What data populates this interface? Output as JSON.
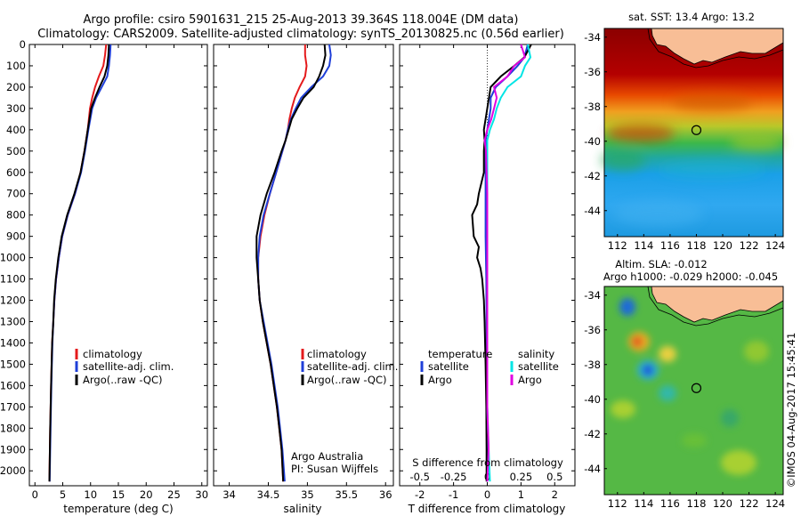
{
  "header": {
    "title_line1": "Argo profile: csiro 5901631_215 25-Aug-2013 39.364S 118.004E (DM data)",
    "title_line2": "Climatology: CARS2009. Satellite-adjusted climatology: synTS_20130825.nc (0.56d earlier)"
  },
  "colors": {
    "climatology": "#e41a1c",
    "satellite": "#1f3fd8",
    "argo": "#000000",
    "sal_satellite": "#00e5e5",
    "sal_argo": "#e100e1"
  },
  "chart_data": [
    {
      "type": "line",
      "name": "temperature-profile",
      "xlabel": "temperature (deg C)",
      "ylabel": "",
      "xlim": [
        -1,
        31
      ],
      "ylim": [
        2070,
        0
      ],
      "xticks": [
        0,
        5,
        10,
        15,
        20,
        25,
        30
      ],
      "yticks": [
        0,
        100,
        200,
        300,
        400,
        500,
        600,
        700,
        800,
        900,
        1000,
        1100,
        1200,
        1300,
        1400,
        1500,
        1600,
        1700,
        1800,
        1900,
        2000
      ],
      "legend": [
        "climatology",
        "satellite-adj. clim.",
        "Argo(..raw -QC)"
      ],
      "series": [
        {
          "name": "climatology",
          "depth": [
            0,
            50,
            100,
            150,
            200,
            250,
            300,
            400,
            500,
            600,
            700,
            800,
            900,
            1000,
            1100,
            1200,
            1300,
            1400,
            1600,
            1800,
            2050
          ],
          "values": [
            12.8,
            12.6,
            12.3,
            11.5,
            10.8,
            10.3,
            9.9,
            9.5,
            8.9,
            8.2,
            7.2,
            5.9,
            4.9,
            4.3,
            3.8,
            3.5,
            3.3,
            3.1,
            2.9,
            2.75,
            2.6
          ]
        },
        {
          "name": "satellite-adj. clim.",
          "depth": [
            0,
            50,
            100,
            150,
            200,
            250,
            300,
            400,
            500,
            600,
            700,
            800,
            900,
            1000,
            1100,
            1200,
            1300,
            1400,
            1600,
            1800,
            2050
          ],
          "values": [
            13.6,
            13.5,
            13.3,
            13.0,
            12.0,
            11.0,
            10.3,
            9.6,
            9.0,
            8.3,
            7.2,
            5.9,
            4.9,
            4.3,
            3.8,
            3.5,
            3.3,
            3.15,
            2.95,
            2.8,
            2.65
          ]
        },
        {
          "name": "Argo(..raw -QC)",
          "depth": [
            0,
            50,
            100,
            150,
            200,
            250,
            300,
            400,
            500,
            600,
            700,
            800,
            900,
            1000,
            1100,
            1200,
            1300,
            1400,
            1600,
            1800,
            2050
          ],
          "values": [
            13.3,
            13.2,
            13.0,
            12.5,
            11.6,
            10.8,
            10.1,
            9.5,
            8.9,
            8.2,
            7.1,
            5.8,
            4.8,
            4.2,
            3.75,
            3.45,
            3.3,
            3.1,
            2.9,
            2.75,
            2.6
          ]
        }
      ]
    },
    {
      "type": "line",
      "name": "salinity-profile",
      "xlabel": "salinity",
      "ylabel": "",
      "xlim": [
        33.8,
        36.1
      ],
      "ylim": [
        2070,
        0
      ],
      "xticks": [
        34,
        34.5,
        35,
        35.5,
        36
      ],
      "legend": [
        "climatology",
        "satellite-adj. clim.",
        "Argo(..raw -QC)"
      ],
      "annotation": [
        "Argo Australia",
        "PI: Susan Wijffels"
      ],
      "series": [
        {
          "name": "climatology",
          "depth": [
            0,
            50,
            100,
            150,
            200,
            250,
            300,
            350,
            400,
            450,
            500,
            600,
            700,
            800,
            900,
            1000,
            1100,
            1200,
            1300,
            1400,
            1500,
            1600,
            1700,
            1800,
            1900,
            2050
          ],
          "values": [
            34.97,
            34.97,
            34.99,
            34.97,
            34.9,
            34.84,
            34.8,
            34.77,
            34.75,
            34.72,
            34.68,
            34.6,
            34.52,
            34.45,
            34.4,
            34.37,
            34.37,
            34.39,
            34.43,
            34.48,
            34.53,
            34.57,
            34.61,
            34.64,
            34.67,
            34.69
          ]
        },
        {
          "name": "satellite-adj. clim.",
          "depth": [
            0,
            50,
            100,
            150,
            200,
            250,
            300,
            350,
            400,
            450,
            500,
            600,
            700,
            800,
            900,
            1000,
            1100,
            1200,
            1300,
            1400,
            1500,
            1600,
            1700,
            1800,
            1900,
            2050
          ],
          "values": [
            35.28,
            35.3,
            35.28,
            35.2,
            35.05,
            34.92,
            34.85,
            34.79,
            34.75,
            34.72,
            34.68,
            34.6,
            34.52,
            34.44,
            34.39,
            34.37,
            34.37,
            34.39,
            34.44,
            34.49,
            34.54,
            34.58,
            34.62,
            34.65,
            34.68,
            34.71
          ]
        },
        {
          "name": "Argo(..raw -QC)",
          "depth": [
            0,
            50,
            100,
            150,
            200,
            250,
            300,
            350,
            400,
            450,
            500,
            600,
            700,
            800,
            900,
            1000,
            1100,
            1200,
            1300,
            1400,
            1500,
            1600,
            1700,
            1800,
            1900,
            2050
          ],
          "values": [
            35.22,
            35.23,
            35.2,
            35.15,
            35.08,
            34.95,
            34.87,
            34.8,
            34.76,
            34.72,
            34.67,
            34.58,
            34.48,
            34.4,
            34.35,
            34.35,
            34.37,
            34.39,
            34.43,
            34.48,
            34.53,
            34.57,
            34.61,
            34.64,
            34.67,
            34.69
          ]
        }
      ]
    },
    {
      "type": "line",
      "name": "difference-profile",
      "xlabel": "T difference from climatology",
      "xlabel_top": "S difference from climatology",
      "xlim": [
        -2.6,
        2.6
      ],
      "ylim": [
        2070,
        0
      ],
      "xticks": [
        -2,
        -1,
        0,
        1,
        2
      ],
      "xticks_top": [
        "-0.5",
        "-0.25",
        "0",
        "0.25",
        "0.5"
      ],
      "legend_headers": [
        "temperature",
        "salinity"
      ],
      "legend": [
        "satellite",
        "Argo",
        "satellite",
        "Argo"
      ],
      "series": [
        {
          "name": "T satellite",
          "depth": [
            0,
            60,
            100,
            150,
            200,
            250,
            300,
            350,
            400,
            450,
            500,
            700,
            900,
            1100,
            1300,
            1500,
            1700,
            1900,
            2050
          ],
          "values": [
            1.2,
            1.1,
            0.9,
            0.6,
            0.25,
            0.1,
            0.1,
            0.05,
            0.0,
            -0.05,
            -0.05,
            -0.05,
            -0.05,
            -0.03,
            -0.02,
            -0.02,
            -0.01,
            0.0,
            0.0
          ]
        },
        {
          "name": "T Argo",
          "depth": [
            0,
            60,
            100,
            150,
            200,
            250,
            300,
            350,
            400,
            450,
            500,
            600,
            700,
            750,
            800,
            900,
            950,
            1000,
            1050,
            1100,
            1200,
            1300,
            1500,
            1700,
            1900,
            2050
          ],
          "values": [
            1.3,
            1.1,
            0.8,
            0.4,
            0.1,
            0.05,
            0.0,
            -0.05,
            -0.1,
            -0.08,
            -0.1,
            -0.1,
            -0.25,
            -0.3,
            -0.45,
            -0.4,
            -0.25,
            -0.3,
            -0.2,
            -0.15,
            -0.1,
            -0.08,
            -0.05,
            -0.03,
            -0.02,
            -0.02
          ]
        },
        {
          "name": "S satellite",
          "depth": [
            0,
            60,
            100,
            150,
            200,
            250,
            300,
            350,
            400,
            450,
            500,
            700,
            900,
            1100,
            1300,
            1500,
            1700,
            1900,
            2050
          ],
          "values": [
            0.3,
            0.32,
            0.28,
            0.25,
            0.15,
            0.1,
            0.07,
            0.05,
            0.02,
            0.0,
            0.0,
            0.0,
            0.0,
            0.0,
            0.0,
            0.0,
            0.0,
            0.01,
            0.02
          ]
        },
        {
          "name": "S Argo",
          "depth": [
            0,
            60,
            100,
            150,
            200,
            250,
            300,
            350,
            400,
            450,
            500,
            700,
            900,
            1100,
            1300,
            1500,
            1700,
            1900,
            2050
          ],
          "values": [
            0.25,
            0.28,
            0.2,
            0.15,
            0.05,
            0.07,
            0.05,
            0.03,
            0.0,
            -0.02,
            -0.01,
            0.0,
            0.0,
            0.0,
            0.0,
            0.0,
            0.0,
            0.01,
            0.0
          ]
        }
      ]
    },
    {
      "type": "heatmap",
      "name": "sst-map",
      "title": "sat. SST: 13.4  Argo: 13.2",
      "xlim": [
        111,
        124.6
      ],
      "ylim": [
        -45.5,
        -33.5
      ],
      "xticks": [
        112,
        114,
        116,
        118,
        120,
        122,
        124
      ],
      "yticks": [
        -34,
        -36,
        -38,
        -40,
        -42,
        -44
      ],
      "marker": {
        "lon": 118.0,
        "lat": -39.36
      }
    },
    {
      "type": "heatmap",
      "name": "sla-map",
      "title": "Altim. SLA: -0.012",
      "subtitle": "Argo h1000: -0.029 h2000: -0.045",
      "xlim": [
        111,
        124.6
      ],
      "ylim": [
        -45.5,
        -33.5
      ],
      "xticks": [
        112,
        114,
        116,
        118,
        120,
        122,
        124
      ],
      "yticks": [
        -34,
        -36,
        -38,
        -40,
        -42,
        -44
      ],
      "marker": {
        "lon": 118.0,
        "lat": -39.36
      }
    }
  ],
  "footer": {
    "credit": "©IMOS 04-Aug-2017 15:45:41"
  }
}
